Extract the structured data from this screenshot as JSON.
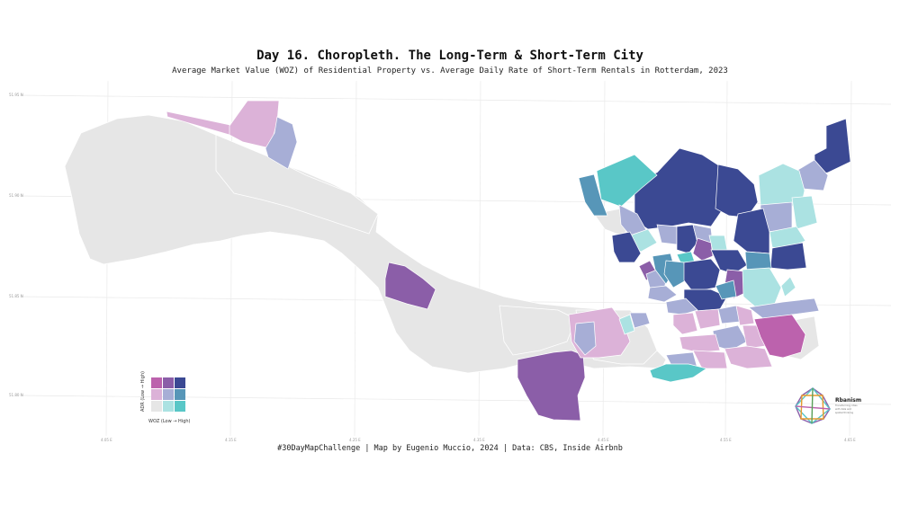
{
  "title": "Day 16. Choropleth. The Long-Term & Short-Term City",
  "subtitle": "Average Market Value (WOZ) of Residential Property vs. Average Daily Rate of Short-Term Rentals in Rotterdam, 2023",
  "caption": "#30DayMapChallenge | Map by Eugenio Muccio, 2024 | Data: CBS, Inside Airbnb",
  "colors": {
    "low_low": "#e6e6e6",
    "mid_low": "#abe2e2",
    "high_low": "#59c7c7",
    "low_mid": "#dcb2d8",
    "mid_mid": "#a7aed6",
    "high_mid": "#5796b8",
    "low_high": "#bc62ad",
    "mid_high": "#8b5ea8",
    "high_high": "#3b4993",
    "no_data": "#e6e6e6",
    "grid": "#e9e9e9"
  },
  "axes": {
    "y_ticks": [
      "51.95 N",
      "51.90 N",
      "51.85 N",
      "51.80 N"
    ],
    "x_ticks": [
      "4.05 E",
      "4.15 E",
      "4.25 E",
      "4.35 E",
      "4.45 E",
      "4.55 E",
      "4.65 E"
    ]
  },
  "legend": {
    "x_label": "WOZ (Low → High)",
    "y_label": "ADR (Low → High)"
  },
  "logo": {
    "name": "Rbanism",
    "tagline_1": "Transforming cities",
    "tagline_2": "with data and",
    "tagline_3": "spatial thinking"
  }
}
